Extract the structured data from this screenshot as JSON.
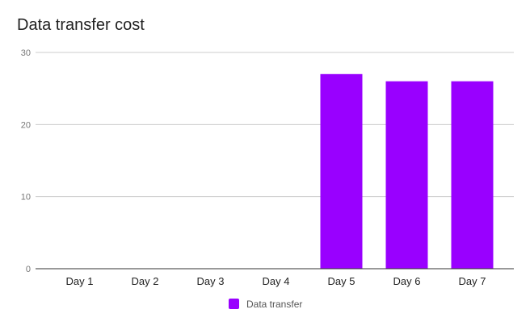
{
  "chart_data": {
    "type": "bar",
    "title": "Data transfer cost",
    "categories": [
      "Day 1",
      "Day 2",
      "Day 3",
      "Day 4",
      "Day 5",
      "Day 6",
      "Day 7"
    ],
    "series": [
      {
        "name": "Data transfer",
        "values": [
          0,
          0,
          0,
          0,
          27,
          26,
          26
        ],
        "color": "#9900ff"
      }
    ],
    "ylim": [
      0,
      30
    ],
    "yticks": [
      0,
      10,
      20,
      30
    ],
    "grid": true,
    "legend_position": "bottom"
  }
}
